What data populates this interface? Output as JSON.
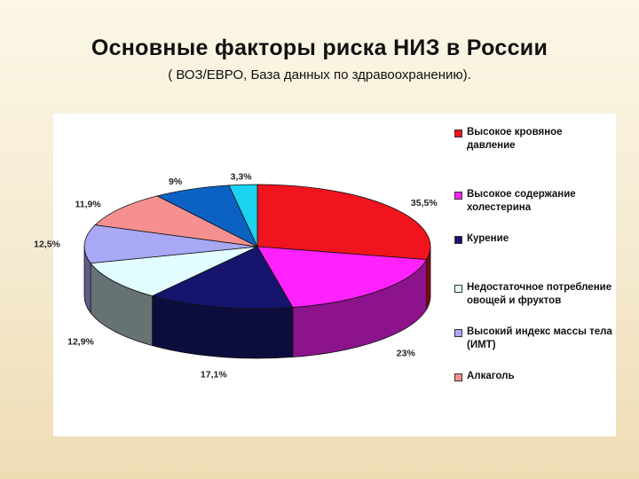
{
  "slide": {
    "title": "Основные факторы риска НИЗ в России",
    "subtitle": "( ВОЗ/ЕВРО, База данных по здравоохранению)."
  },
  "chart_data": {
    "type": "pie",
    "title": "",
    "legend_position": "right",
    "three_d": true,
    "series": [
      {
        "categories": [
          "Высокое кровяное давление",
          "Высокое содержание холестерина",
          "Курение",
          "Недостаточное потребление овощей и фруктов",
          "Высокий индекс массы тела (ИМТ)",
          "Алкаголь",
          "",
          ""
        ],
        "values": [
          35.5,
          23,
          17.1,
          12.9,
          12.5,
          11.9,
          9,
          3.3
        ],
        "labels": [
          "35,5%",
          "23%",
          "17,1%",
          "12,9%",
          "12,5%",
          "11,9%",
          "9%",
          "3,3%"
        ],
        "colors": [
          "#f0141e",
          "#ff22ff",
          "#15156e",
          "#e2fdff",
          "#a8a8f5",
          "#f69090",
          "#0c62c4",
          "#19d3ef"
        ]
      }
    ],
    "legend": [
      {
        "label": "Высокое кровяное давление",
        "color": "#f0141e"
      },
      {
        "label": "Высокое содержание холестерина",
        "color": "#ff22ff"
      },
      {
        "label": "Курение",
        "color": "#15156e"
      },
      {
        "label": "Недостаточное потребление овощей и фруктов",
        "color": "#e2fdff"
      },
      {
        "label": "Высокий индекс массы тела (ИМТ)",
        "color": "#a8a8f5"
      },
      {
        "label": "Алкаголь",
        "color": "#f69090"
      }
    ]
  }
}
